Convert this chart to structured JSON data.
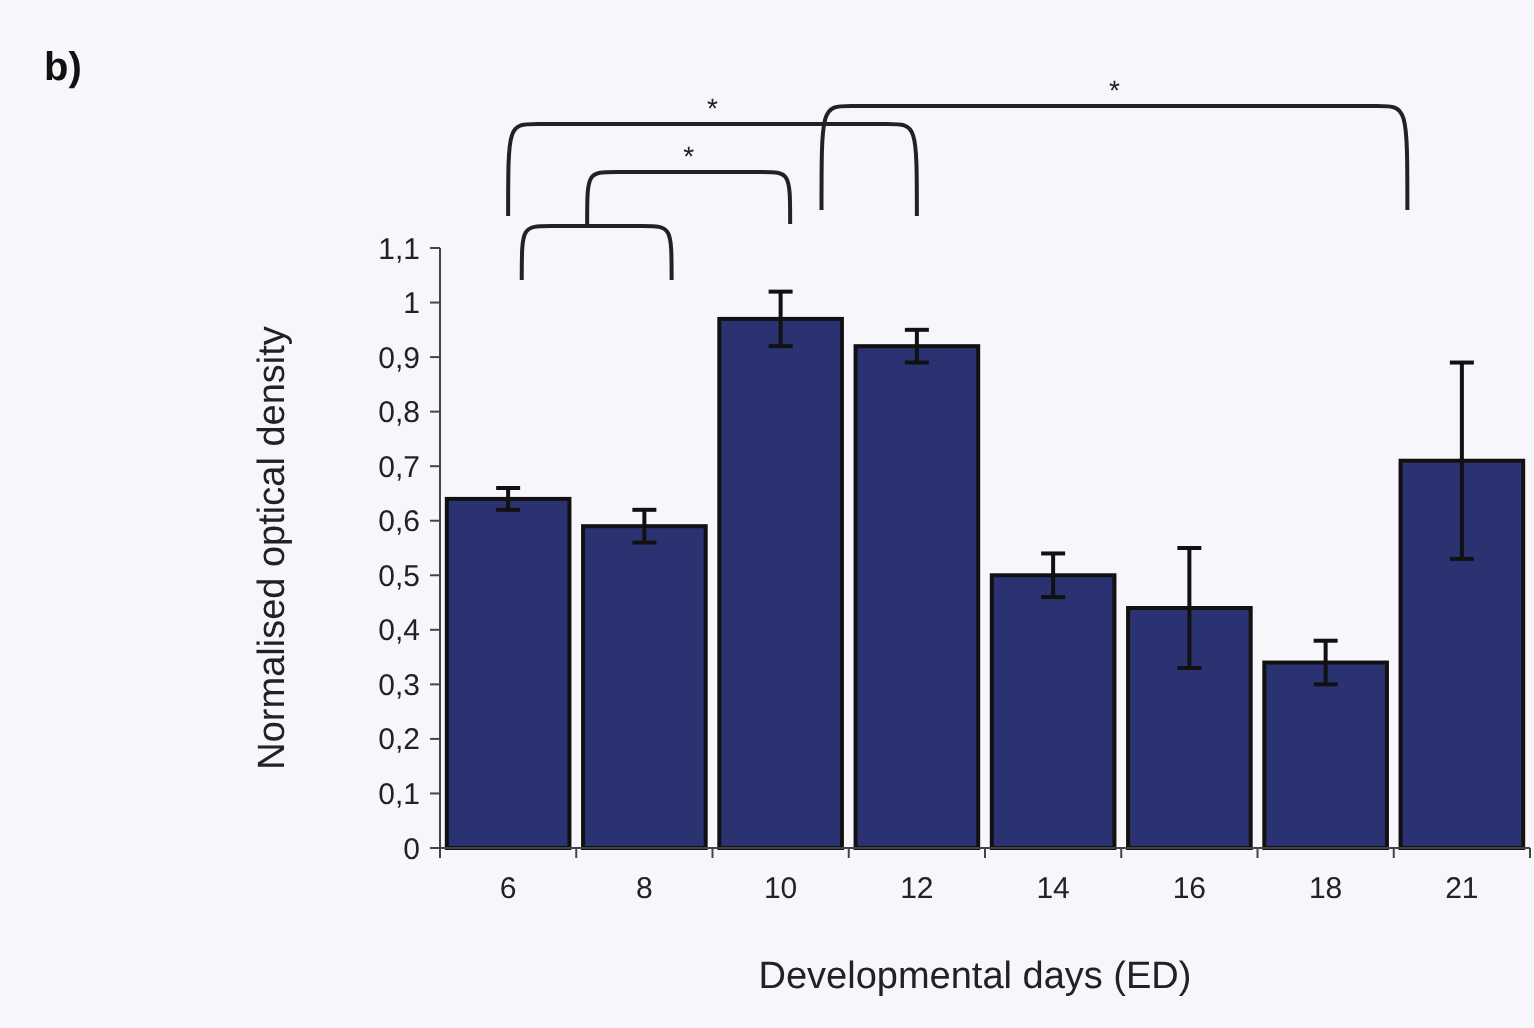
{
  "chart_data": {
    "type": "bar",
    "title": "b)",
    "xlabel": "Developmental days (ED)",
    "ylabel": "Normalised optical density",
    "categories": [
      "6",
      "8",
      "10",
      "12",
      "14",
      "16",
      "18",
      "21"
    ],
    "values": [
      0.64,
      0.59,
      0.97,
      0.92,
      0.5,
      0.44,
      0.34,
      0.71
    ],
    "errors": [
      0.02,
      0.03,
      0.05,
      0.03,
      0.04,
      0.11,
      0.04,
      0.18
    ],
    "color": "#2b3272",
    "ylim": [
      0,
      1.1
    ],
    "yticks": [
      0,
      {
        "value": 0.1,
        "label": "0,1"
      },
      {
        "value": 0.2,
        "label": "0,2"
      },
      {
        "value": 0.3,
        "label": "0,3"
      },
      {
        "value": 0.4,
        "label": "0,4"
      },
      {
        "value": 0.5,
        "label": "0,5"
      },
      {
        "value": 0.6,
        "label": "0,6"
      },
      {
        "value": 0.7,
        "label": "0,7"
      },
      {
        "value": 0.8,
        "label": "0,8"
      },
      {
        "value": 0.9,
        "label": "0,9"
      },
      1,
      {
        "value": 1.1,
        "label": "1,1"
      }
    ],
    "annotations": [
      "*",
      "*",
      "*"
    ]
  }
}
